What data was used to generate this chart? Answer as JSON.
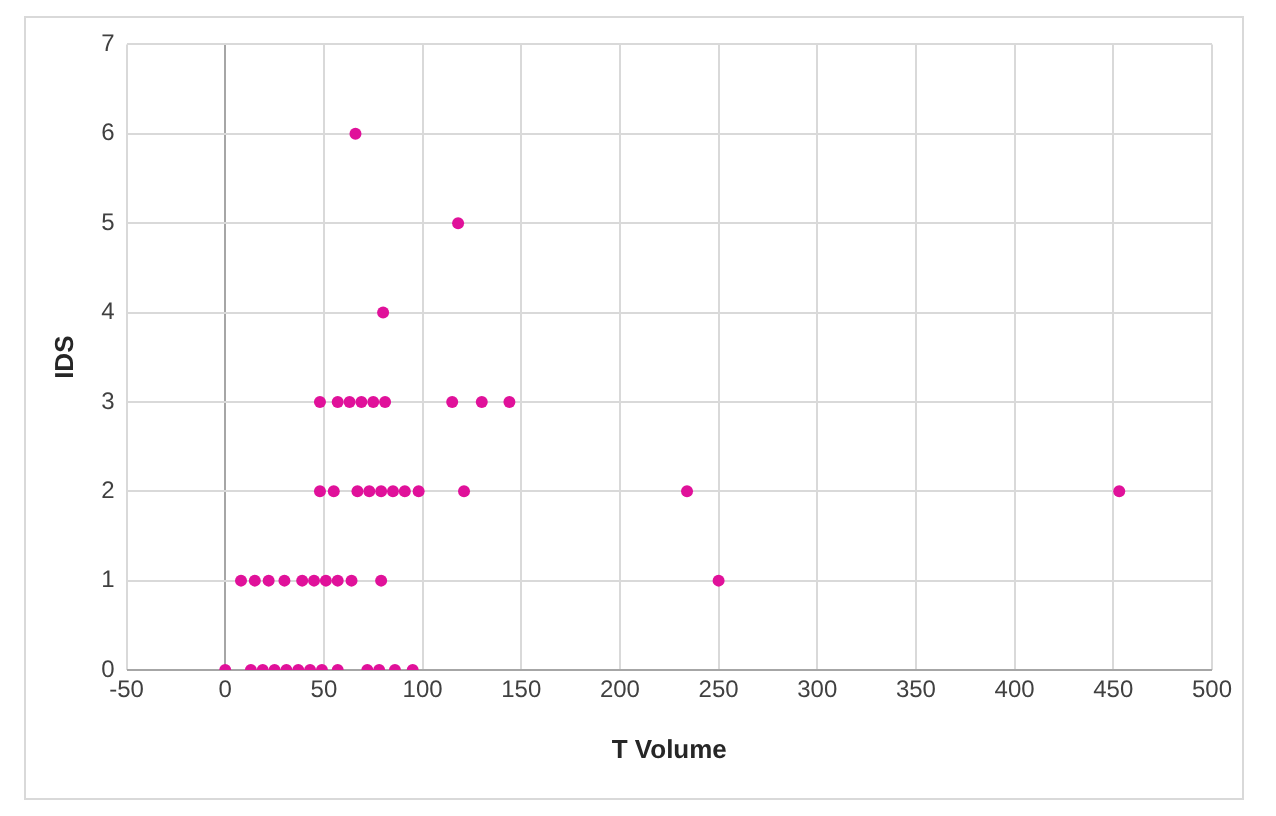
{
  "chart_data": {
    "type": "scatter",
    "xlabel": "T Volume",
    "ylabel": "IDS",
    "marker": "circle",
    "grid": true,
    "legend": false,
    "xlim": [
      -50,
      500
    ],
    "xticks": [
      -50,
      0,
      50,
      100,
      150,
      200,
      250,
      300,
      350,
      400,
      450,
      500
    ],
    "ylim": [
      0,
      7
    ],
    "yticks": [
      0,
      1,
      2,
      3,
      4,
      5,
      6,
      7
    ],
    "series": [
      {
        "color": "#e0119a",
        "x": [
          0,
          13,
          19,
          25,
          31,
          37,
          43,
          49,
          57,
          72,
          78,
          86,
          95,
          8,
          15,
          22,
          30,
          39,
          45,
          51,
          57,
          64,
          79,
          250,
          48,
          55,
          67,
          73,
          79,
          85,
          91,
          98,
          121,
          234,
          453,
          48,
          57,
          63,
          69,
          75,
          81,
          115,
          130,
          144,
          80,
          118,
          66
        ],
        "values": [
          0,
          0,
          0,
          0,
          0,
          0,
          0,
          0,
          0,
          0,
          0,
          0,
          0,
          1,
          1,
          1,
          1,
          1,
          1,
          1,
          1,
          1,
          1,
          1,
          2,
          2,
          2,
          2,
          2,
          2,
          2,
          2,
          2,
          2,
          2,
          3,
          3,
          3,
          3,
          3,
          3,
          3,
          3,
          3,
          4,
          5,
          6
        ]
      }
    ]
  }
}
